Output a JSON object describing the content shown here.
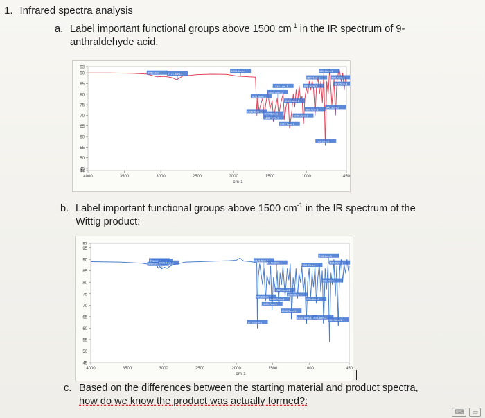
{
  "document": {
    "heading_num": "1.",
    "heading": "Infrared spectra analysis",
    "part_a": {
      "letter": "a.",
      "line1_pre": "Label important functional groups above 1500 cm",
      "sup": "-1",
      "line1_post": " in the IR spectrum of 9-",
      "line2": "anthraldehyde acid."
    },
    "part_b": {
      "letter": "b.",
      "line1_pre": "Label important functional groups above 1500 cm",
      "sup": "-1",
      "line1_post": " in the IR spectrum of the",
      "line2": "Wittig product:"
    },
    "part_c": {
      "letter": "c.",
      "line1": "Based on the differences between the starting material and product spectra,",
      "line2": "how do we know the product was actually formed?:"
    }
  },
  "chart_data": [
    {
      "type": "line",
      "xlabel": "cm-1",
      "ylabel": "",
      "xlim": [
        4000,
        450
      ],
      "ylim": [
        44,
        93
      ],
      "x_ticks": [
        "4000",
        "3500",
        "3000",
        "2500",
        "2000",
        "1500",
        "1000",
        "450"
      ],
      "y_ticks": [
        "93",
        "90",
        "85",
        "80",
        "75",
        "70",
        "65",
        "60",
        "55",
        "50",
        "45",
        "44"
      ],
      "series": [
        {
          "color": "#e0455a",
          "points": [
            [
              4000,
              90
            ],
            [
              3700,
              90
            ],
            [
              3400,
              89.8
            ],
            [
              3200,
              89.5
            ],
            [
              3100,
              88.6
            ],
            [
              3050,
              88.2
            ],
            [
              2950,
              88.4
            ],
            [
              2850,
              87.8
            ],
            [
              2780,
              86.8
            ],
            [
              2750,
              87.4
            ],
            [
              2700,
              88.5
            ],
            [
              2500,
              89.2
            ],
            [
              2300,
              89.4
            ],
            [
              2100,
              89.3
            ],
            [
              1950,
              88.5
            ],
            [
              1850,
              88.3
            ],
            [
              1700,
              88.0
            ],
            [
              1680,
              70
            ],
            [
              1670,
              79
            ],
            [
              1650,
              72
            ],
            [
              1620,
              76
            ],
            [
              1600,
              78
            ],
            [
              1580,
              69
            ],
            [
              1560,
              75
            ],
            [
              1530,
              81
            ],
            [
              1500,
              73
            ],
            [
              1470,
              77
            ],
            [
              1450,
              67
            ],
            [
              1430,
              73
            ],
            [
              1400,
              78
            ],
            [
              1380,
              70
            ],
            [
              1350,
              76
            ],
            [
              1320,
              80
            ],
            [
              1300,
              68
            ],
            [
              1280,
              74
            ],
            [
              1250,
              78
            ],
            [
              1230,
              64
            ],
            [
              1200,
              72
            ],
            [
              1180,
              80
            ],
            [
              1160,
              74
            ],
            [
              1140,
              82
            ],
            [
              1120,
              76
            ],
            [
              1100,
              84
            ],
            [
              1080,
              77
            ],
            [
              1060,
              79
            ],
            [
              1040,
              66
            ],
            [
              1020,
              78
            ],
            [
              1000,
              83
            ],
            [
              980,
              80
            ],
            [
              960,
              86
            ],
            [
              940,
              82
            ],
            [
              920,
              86
            ],
            [
              900,
              82
            ],
            [
              880,
              70
            ],
            [
              860,
              84
            ],
            [
              840,
              88
            ],
            [
              820,
              80
            ],
            [
              800,
              86
            ],
            [
              780,
              76
            ],
            [
              760,
              90
            ],
            [
              740,
              56
            ],
            [
              720,
              86
            ],
            [
              700,
              80
            ],
            [
              680,
              92
            ],
            [
              650,
              75
            ],
            [
              620,
              87
            ],
            [
              600,
              70
            ],
            [
              580,
              86
            ],
            [
              550,
              92
            ],
            [
              520,
              86
            ],
            [
              500,
              90
            ],
            [
              480,
              82
            ],
            [
              460,
              88
            ],
            [
              450,
              86
            ]
          ]
        }
      ],
      "annotations": [
        "3050.8cm-1",
        "2771.4cm-1",
        "1904.6cm-1",
        "1680.5cm-1",
        "1621.5cm-1",
        "1457.8cm-1",
        "1448.1cm-1",
        "1392.9cm-1",
        "1319.1cm-1",
        "1232.9cm-1",
        "1163.8cm-1",
        "1045.3cm-1",
        "900.9cm-1",
        "880.4cm-1",
        "857.4cm-1",
        "733.1cm-1",
        "684.6cm-1",
        "600.3cm-1",
        "520.4cm-1",
        "481.5cm-1"
      ]
    },
    {
      "type": "line",
      "xlabel": "cm-1",
      "ylabel": "",
      "xlim": [
        4000,
        450
      ],
      "ylim": [
        45,
        97
      ],
      "x_ticks": [
        "4000",
        "3500",
        "3000",
        "2500",
        "2000",
        "1500",
        "1000",
        "450"
      ],
      "y_ticks": [
        "97",
        "95",
        "90",
        "85",
        "80",
        "75",
        "70",
        "65",
        "60",
        "55",
        "50",
        "45"
      ],
      "series": [
        {
          "color": "#4b7ec9",
          "points": [
            [
              4000,
              89
            ],
            [
              3600,
              88.8
            ],
            [
              3300,
              88.3
            ],
            [
              3100,
              87.4
            ],
            [
              3070,
              86.2
            ],
            [
              3050,
              86.9
            ],
            [
              3030,
              85.8
            ],
            [
              2990,
              86.6
            ],
            [
              2950,
              86.1
            ],
            [
              2920,
              86.8
            ],
            [
              2870,
              87.6
            ],
            [
              2700,
              88.8
            ],
            [
              2500,
              89.0
            ],
            [
              2300,
              89.2
            ],
            [
              2100,
              89.4
            ],
            [
              2000,
              89.6
            ],
            [
              1950,
              90.6
            ],
            [
              1900,
              89.3
            ],
            [
              1800,
              89.0
            ],
            [
              1720,
              88.5
            ],
            [
              1710,
              60
            ],
            [
              1700,
              82
            ],
            [
              1680,
              88
            ],
            [
              1640,
              79
            ],
            [
              1620,
              86
            ],
            [
              1600,
              72
            ],
            [
              1580,
              83
            ],
            [
              1550,
              79
            ],
            [
              1530,
              87
            ],
            [
              1510,
              68
            ],
            [
              1490,
              82
            ],
            [
              1460,
              76
            ],
            [
              1440,
              85
            ],
            [
              1420,
              71
            ],
            [
              1400,
              84
            ],
            [
              1380,
              79
            ],
            [
              1360,
              87
            ],
            [
              1330,
              74
            ],
            [
              1300,
              86
            ],
            [
              1280,
              81
            ],
            [
              1260,
              88
            ],
            [
              1240,
              64
            ],
            [
              1220,
              82
            ],
            [
              1200,
              77
            ],
            [
              1180,
              86
            ],
            [
              1160,
              73
            ],
            [
              1140,
              84
            ],
            [
              1120,
              80
            ],
            [
              1100,
              87
            ],
            [
              1080,
              76
            ],
            [
              1060,
              82
            ],
            [
              1040,
              62
            ],
            [
              1020,
              80
            ],
            [
              1000,
              86
            ],
            [
              980,
              73
            ],
            [
              960,
              84
            ],
            [
              940,
              78
            ],
            [
              920,
              87
            ],
            [
              900,
              71
            ],
            [
              880,
              82
            ],
            [
              860,
              88
            ],
            [
              840,
              76
            ],
            [
              820,
              85
            ],
            [
              800,
              62
            ],
            [
              780,
              86
            ],
            [
              760,
              77
            ],
            [
              740,
              88
            ],
            [
              720,
              54
            ],
            [
              700,
              84
            ],
            [
              680,
              79
            ],
            [
              660,
              90
            ],
            [
              640,
              74
            ],
            [
              620,
              87
            ],
            [
              600,
              61
            ],
            [
              580,
              85
            ],
            [
              560,
              90
            ],
            [
              540,
              80
            ],
            [
              520,
              88
            ],
            [
              500,
              84
            ],
            [
              480,
              90
            ],
            [
              460,
              85
            ],
            [
              450,
              87
            ]
          ]
        }
      ],
      "annotations": [
        "3080.7cm-1",
        "3057.4cm-1",
        "3020.4cm-1",
        "2931.5cm-1",
        "1710.6cm-1",
        "1621.5cm-1",
        "1593.2cm-1",
        "1508.7cm-1",
        "1442.2cm-1",
        "1410.7cm-1",
        "1331.4cm-1",
        "1246.5cm-1",
        "1163.8cm-1",
        "1032.9cm-1",
        "959.7cm-1",
        "905.6cm-1",
        "808.3cm-1",
        "733.1cm-1",
        "681.4cm-1",
        "597.3cm-1",
        "581.9cm-1"
      ]
    }
  ]
}
